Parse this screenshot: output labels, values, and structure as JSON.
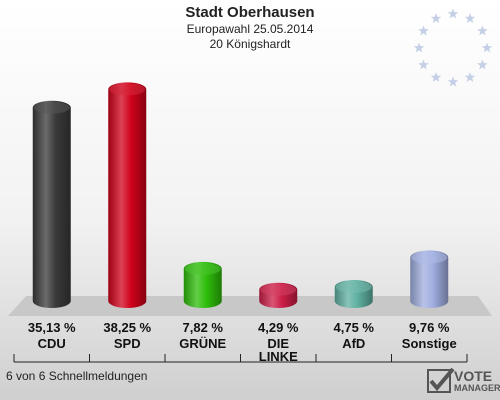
{
  "header": {
    "title": "Stadt Oberhausen",
    "subtitle": "Europawahl 25.05.2014",
    "district": "20 Königshardt"
  },
  "footer": {
    "reports": "6 von 6 Schnellmeldungen",
    "logo_top": "VOTE",
    "logo_bottom": "MANAGER"
  },
  "chart_data": {
    "type": "bar",
    "categories": [
      "CDU",
      "SPD",
      "GRÜNE",
      "DIE LINKE",
      "AfD",
      "Sonstige"
    ],
    "values": [
      35.13,
      38.25,
      7.82,
      4.29,
      4.75,
      9.76
    ],
    "value_labels": [
      "35,13 %",
      "38,25 %",
      "7,82 %",
      "4,29 %",
      "4,75 %",
      "9,76 %"
    ],
    "colors": [
      "#3a3a3a",
      "#d0021b",
      "#2ebd0a",
      "#cc1e47",
      "#5fb0a0",
      "#a0aee0"
    ],
    "ylim": [
      0,
      40
    ]
  }
}
